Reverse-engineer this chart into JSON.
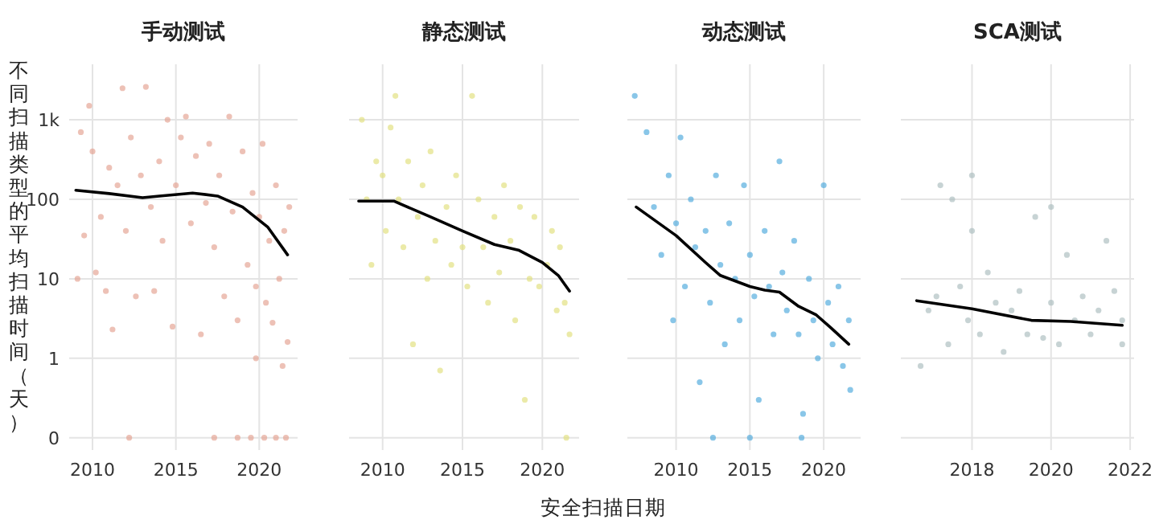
{
  "chart_data": [
    {
      "type": "scatter",
      "title": "手动测试",
      "ylabel": "不同扫描类型的平均扫描时间（天）",
      "log": "y",
      "grid": true,
      "xlim": [
        2008.6,
        2022.3
      ],
      "xticks": [
        2010,
        2015,
        2020
      ],
      "ylim": [
        0.07,
        5000
      ],
      "yticks": [
        {
          "value": 0.1,
          "label": "0"
        },
        1,
        10,
        100,
        {
          "value": 1000,
          "label": "1k"
        }
      ],
      "series": [
        {
          "type": "scatter",
          "marker": "circle",
          "color": "#e3a08f",
          "x": [
            2009.1,
            2009.3,
            2009.5,
            2009.8,
            2010,
            2010.2,
            2010.5,
            2010.8,
            2011,
            2011.2,
            2011.5,
            2011.8,
            2012,
            2012.3,
            2012.6,
            2012.9,
            2013.2,
            2013.5,
            2013.7,
            2014,
            2014.2,
            2014.5,
            2014.8,
            2015,
            2015.3,
            2015.6,
            2015.9,
            2016.2,
            2016.5,
            2016.8,
            2017,
            2017.3,
            2017.6,
            2017.9,
            2018.2,
            2018.4,
            2018.7,
            2019,
            2019.3,
            2019.6,
            2019.8,
            2020,
            2020.2,
            2020.4,
            2020.6,
            2020.8,
            2021,
            2021.2,
            2021.4,
            2021.5,
            2021.7,
            2021.8,
            2012.2,
            2017.3,
            2018.7,
            2019.5,
            2020.3,
            2021,
            2021.6,
            2019.8
          ],
          "values": [
            10,
            700,
            35,
            1500,
            400,
            12,
            60,
            7,
            250,
            2.3,
            150,
            2500,
            40,
            600,
            6,
            200,
            2600,
            80,
            7,
            300,
            30,
            1000,
            2.5,
            150,
            600,
            1100,
            50,
            350,
            2,
            90,
            500,
            25,
            200,
            6,
            1100,
            70,
            3,
            400,
            15,
            120,
            8,
            60,
            500,
            5,
            30,
            2.8,
            150,
            10,
            0.8,
            40,
            1.6,
            80,
            0.1,
            0.1,
            0.1,
            0.1,
            0.1,
            0.1,
            0.1,
            1
          ]
        },
        {
          "type": "line",
          "color": "#000000",
          "x": [
            2009,
            2011,
            2013,
            2014,
            2016,
            2017.5,
            2019,
            2020.5,
            2021.7
          ],
          "values": [
            130,
            118,
            105,
            110,
            120,
            110,
            80,
            45,
            20
          ]
        }
      ]
    },
    {
      "type": "scatter",
      "title": "静态测试",
      "xlabel": "安全扫描日期",
      "log": "y",
      "grid": true,
      "tick_labels": "x",
      "xlim": [
        2007.9,
        2022.3
      ],
      "xticks": [
        2010,
        2015,
        2020
      ],
      "ylim": [
        0.07,
        5000
      ],
      "series": [
        {
          "type": "scatter",
          "marker": "circle",
          "color": "#e0df7a",
          "x": [
            2008.7,
            2009,
            2009.3,
            2009.6,
            2010,
            2010.2,
            2010.5,
            2010.8,
            2011,
            2011.3,
            2011.6,
            2011.9,
            2012.2,
            2012.5,
            2012.8,
            2013,
            2013.3,
            2013.6,
            2014,
            2014.3,
            2014.6,
            2015,
            2015.3,
            2015.6,
            2016,
            2016.3,
            2016.6,
            2017,
            2017.3,
            2017.6,
            2018,
            2018.3,
            2018.6,
            2018.9,
            2019.2,
            2019.5,
            2019.8,
            2020.3,
            2020.6,
            2020.9,
            2021.1,
            2021.4,
            2021.7,
            2021.5
          ],
          "values": [
            1000,
            100,
            15,
            300,
            200,
            40,
            800,
            2000,
            100,
            25,
            300,
            1.5,
            60,
            150,
            10,
            400,
            30,
            0.7,
            80,
            15,
            200,
            25,
            8,
            2000,
            100,
            25,
            5,
            60,
            12,
            150,
            30,
            3,
            80,
            0.3,
            10,
            60,
            8,
            15,
            40,
            4,
            25,
            5,
            2,
            0.1
          ]
        },
        {
          "type": "line",
          "color": "#000000",
          "x": [
            2008.5,
            2010.7,
            2013,
            2015,
            2017,
            2018.5,
            2020,
            2021,
            2021.7
          ],
          "values": [
            95,
            95,
            60,
            40,
            27,
            23,
            16,
            11,
            7
          ]
        }
      ]
    },
    {
      "type": "scatter",
      "title": "动态测试",
      "log": "y",
      "grid": true,
      "tick_labels": "x",
      "xlim": [
        2006.7,
        2022.5
      ],
      "xticks": [
        2010,
        2015,
        2020
      ],
      "ylim": [
        0.07,
        5000
      ],
      "series": [
        {
          "type": "scatter",
          "marker": "circle",
          "color": "#4aa8dc",
          "x": [
            2007.2,
            2008,
            2008.5,
            2009,
            2009.5,
            2009.8,
            2010,
            2010.3,
            2010.6,
            2011,
            2011.3,
            2011.6,
            2012,
            2012.3,
            2012.7,
            2013,
            2013.3,
            2013.6,
            2014,
            2014.3,
            2014.6,
            2015,
            2015.3,
            2015.6,
            2016,
            2016.3,
            2016.6,
            2017,
            2017.2,
            2017.5,
            2018,
            2018.3,
            2018.6,
            2019,
            2019.3,
            2019.6,
            2020,
            2020.3,
            2020.6,
            2021,
            2021.3,
            2021.7,
            2021.8,
            2012.5,
            2015,
            2018.5
          ],
          "values": [
            2000,
            700,
            80,
            20,
            200,
            3,
            50,
            600,
            8,
            100,
            25,
            0.5,
            40,
            5,
            200,
            15,
            1.5,
            50,
            10,
            3,
            150,
            20,
            6,
            0.3,
            40,
            8,
            2,
            300,
            12,
            4,
            30,
            2,
            0.2,
            10,
            3,
            1,
            150,
            5,
            1.5,
            8,
            0.8,
            3,
            0.4,
            0.1,
            0.1,
            0.1
          ]
        },
        {
          "type": "line",
          "color": "#000000",
          "x": [
            2007.3,
            2010,
            2012,
            2013,
            2015,
            2016,
            2017,
            2018.3,
            2019.5,
            2020.5,
            2021.7
          ],
          "values": [
            80,
            35,
            16,
            11,
            8,
            7.2,
            6.8,
            4.5,
            3.5,
            2.4,
            1.5
          ]
        }
      ]
    },
    {
      "type": "scatter",
      "title": "SCA测试",
      "log": "y",
      "grid": true,
      "tick_labels": "x",
      "xlim": [
        2016.2,
        2022.1
      ],
      "xticks": [
        2018,
        2020,
        2022
      ],
      "ylim": [
        0.07,
        5000
      ],
      "series": [
        {
          "type": "scatter",
          "marker": "circle",
          "color": "#a9bcbd",
          "x": [
            2016.7,
            2016.9,
            2017.1,
            2017.2,
            2017.4,
            2017.5,
            2017.7,
            2017.9,
            2018,
            2018,
            2018.2,
            2018.4,
            2018.6,
            2018.8,
            2019,
            2019.2,
            2019.4,
            2019.6,
            2019.8,
            2020,
            2020,
            2020.2,
            2020.4,
            2020.6,
            2020.8,
            2021,
            2021.2,
            2021.4,
            2021.6,
            2021.8,
            2021.8
          ],
          "values": [
            0.8,
            4,
            6,
            150,
            1.5,
            100,
            8,
            3,
            200,
            40,
            2,
            12,
            5,
            1.2,
            4,
            7,
            2,
            60,
            1.8,
            5,
            80,
            1.5,
            20,
            3,
            6,
            2,
            4,
            30,
            7,
            1.5,
            3
          ]
        },
        {
          "type": "line",
          "color": "#000000",
          "x": [
            2016.6,
            2018,
            2019.5,
            2020.5,
            2021.8
          ],
          "values": [
            5.3,
            4.2,
            3.0,
            2.9,
            2.6
          ]
        }
      ]
    }
  ]
}
